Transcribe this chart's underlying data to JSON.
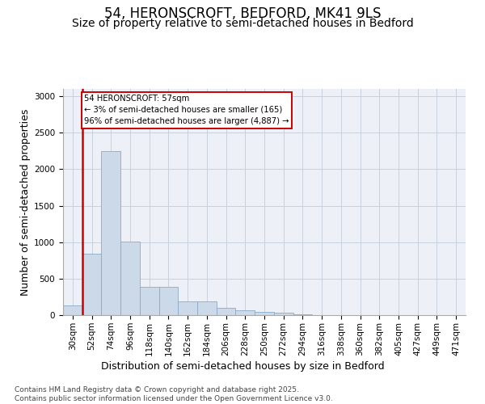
{
  "title": "54, HERONSCROFT, BEDFORD, MK41 9LS",
  "subtitle": "Size of property relative to semi-detached houses in Bedford",
  "xlabel": "Distribution of semi-detached houses by size in Bedford",
  "ylabel": "Number of semi-detached properties",
  "bar_color": "#ccd9e8",
  "bar_edge_color": "#8aaac8",
  "grid_color": "#c8d0dc",
  "background_color": "#edf1f7",
  "vline_color": "#cc0000",
  "vline_x": 0.5,
  "annotation_text": "54 HERONSCROFT: 57sqm\n← 3% of semi-detached houses are smaller (165)\n96% of semi-detached houses are larger (4,887) →",
  "annotation_box_color": "#ffffff",
  "annotation_box_edge": "#cc0000",
  "categories": [
    "30sqm",
    "52sqm",
    "74sqm",
    "96sqm",
    "118sqm",
    "140sqm",
    "162sqm",
    "184sqm",
    "206sqm",
    "228sqm",
    "250sqm",
    "272sqm",
    "294sqm",
    "316sqm",
    "338sqm",
    "360sqm",
    "382sqm",
    "405sqm",
    "427sqm",
    "449sqm",
    "471sqm"
  ],
  "values": [
    130,
    840,
    2250,
    1010,
    390,
    390,
    185,
    185,
    105,
    65,
    45,
    35,
    10,
    5,
    5,
    5,
    3,
    2,
    2,
    2,
    2
  ],
  "ylim": [
    0,
    3100
  ],
  "yticks": [
    0,
    500,
    1000,
    1500,
    2000,
    2500,
    3000
  ],
  "footer": "Contains HM Land Registry data © Crown copyright and database right 2025.\nContains public sector information licensed under the Open Government Licence v3.0.",
  "title_fontsize": 12,
  "subtitle_fontsize": 10,
  "axis_label_fontsize": 9,
  "tick_fontsize": 7.5,
  "footer_fontsize": 6.5
}
